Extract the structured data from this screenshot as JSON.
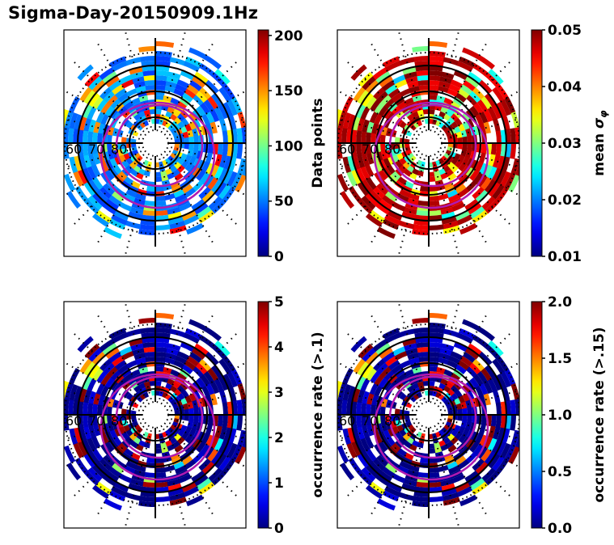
{
  "figure": {
    "title": "Sigma-Day-20150909.1Hz"
  },
  "chart_data": [
    {
      "type": "heatmap",
      "projection": "polar",
      "panel": "top-left",
      "title": "",
      "radial_tick_labels": [
        "60",
        "70",
        "80"
      ],
      "colorbar": {
        "label": "Data points",
        "range": [
          0,
          205
        ],
        "ticks": [
          0,
          50,
          100,
          150,
          200
        ],
        "tick_labels": [
          "0",
          "50",
          "100",
          "150",
          "200"
        ],
        "colormap": "jet"
      },
      "dominant_level": 0.25,
      "hotspot_level": 0.75
    },
    {
      "type": "heatmap",
      "projection": "polar",
      "panel": "top-right",
      "title": "",
      "radial_tick_labels": [
        "60",
        "70",
        "80"
      ],
      "colorbar": {
        "label": "mean σ_φ",
        "label_main": "mean ",
        "label_symbol": "σ",
        "label_sub": "φ",
        "range": [
          0.01,
          0.05
        ],
        "ticks": [
          0.01,
          0.02,
          0.03,
          0.04,
          0.05
        ],
        "tick_labels": [
          "0.01",
          "0.02",
          "0.03",
          "0.04",
          "0.05"
        ],
        "colormap": "jet"
      },
      "dominant_level": 0.95,
      "hotspot_level": 0.5
    },
    {
      "type": "heatmap",
      "projection": "polar",
      "panel": "bottom-left",
      "title": "",
      "radial_tick_labels": [
        "60",
        "70",
        "80"
      ],
      "colorbar": {
        "label": "occurrence rate (>.1)",
        "range": [
          0,
          5
        ],
        "ticks": [
          0,
          1,
          2,
          3,
          4,
          5
        ],
        "tick_labels": [
          "0",
          "1",
          "2",
          "3",
          "4",
          "5"
        ],
        "colormap": "jet"
      },
      "dominant_level": 0.02,
      "hotspot_level": 0.98
    },
    {
      "type": "heatmap",
      "projection": "polar",
      "panel": "bottom-right",
      "title": "",
      "radial_tick_labels": [
        "60",
        "70",
        "80"
      ],
      "colorbar": {
        "label": "occurrence rate (>.15)",
        "range": [
          0.0,
          2.0
        ],
        "ticks": [
          0.0,
          0.5,
          1.0,
          1.5,
          2.0
        ],
        "tick_labels": [
          "0.0",
          "0.5",
          "1.0",
          "1.5",
          "2.0"
        ],
        "colormap": "jet"
      },
      "dominant_level": 0.02,
      "hotspot_level": 0.98
    }
  ],
  "colors": {
    "oval": "#b01ab0",
    "grid": "#000000"
  }
}
